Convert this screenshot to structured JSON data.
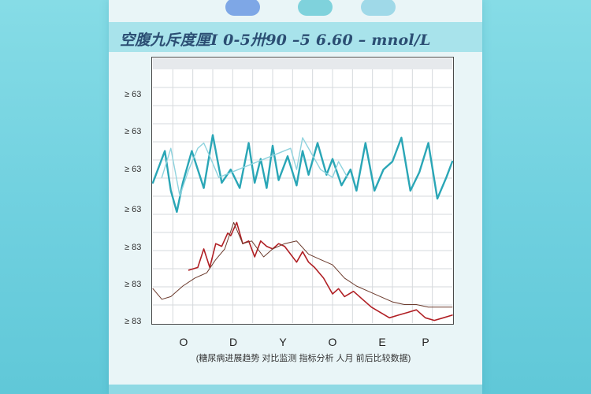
{
  "header": {
    "title": "空腹九斥度厘I 0-5卅90 –5 6.60 – mnol/L"
  },
  "colors": {
    "teal": "#2aa6b6",
    "teal_light": "#8fd3de",
    "red": "#b01f24",
    "red_dark": "#6b3a2c"
  },
  "chart_data": {
    "type": "line",
    "title": "空腹九斥度厘I 0-5卅90 –5 6.60 – mnol/L",
    "xlabel": "(糖尿病进展趋势 对比监测 指标分析 人月 前后比较数据)",
    "ylabel": "",
    "x_ticks": [
      "O",
      "D",
      "Y",
      "O",
      "E",
      "P"
    ],
    "y_ticks": [
      "≥ 63",
      "≥ 63",
      "≥ 63",
      "≥ 63",
      "≥ 83",
      "≥ 83",
      "≥ 83"
    ],
    "xlim": [
      0,
      100
    ],
    "ylim": [
      0,
      100
    ],
    "grid": true,
    "series": [
      {
        "color": "#2aa6b6",
        "x": [
          0,
          4,
          6,
          8,
          10,
          13,
          17,
          20,
          23,
          26,
          29,
          32,
          34,
          36,
          38,
          40,
          42,
          45,
          48,
          50,
          52,
          55,
          58,
          60,
          63,
          66,
          68,
          71,
          74,
          77,
          80,
          83,
          86,
          89,
          92,
          95,
          98,
          100
        ],
        "y": [
          53,
          65,
          50,
          42,
          53,
          65,
          51,
          71,
          53,
          58,
          51,
          68,
          53,
          62,
          51,
          67,
          54,
          63,
          52,
          65,
          56,
          68,
          56,
          62,
          52,
          58,
          50,
          68,
          50,
          58,
          61,
          70,
          50,
          57,
          68,
          47,
          55,
          61
        ]
      },
      {
        "color": "#8fd3de",
        "x": [
          3,
          6,
          9,
          12,
          15,
          17,
          19,
          22,
          46,
          48,
          50,
          53,
          56,
          60,
          62,
          65
        ],
        "y": [
          55,
          66,
          48,
          58,
          66,
          68,
          63,
          55,
          66,
          58,
          70,
          64,
          58,
          55,
          61,
          55
        ]
      },
      {
        "color": "#b01f24",
        "x": [
          12,
          15,
          17,
          19,
          21,
          23,
          25,
          26,
          28,
          30,
          32,
          34,
          36,
          38,
          40,
          42,
          44,
          46,
          48,
          50,
          52,
          54,
          57,
          60,
          62,
          64,
          67,
          70,
          73,
          76,
          79,
          82,
          85,
          88,
          91,
          94,
          97,
          100
        ],
        "y": [
          20,
          21,
          28,
          21,
          30,
          29,
          34,
          33,
          38,
          30,
          31,
          25,
          31,
          29,
          28,
          30,
          29,
          26,
          23,
          27,
          23,
          21,
          17,
          11,
          13,
          10,
          12,
          9,
          6,
          4,
          2,
          3,
          4,
          5,
          2,
          1,
          2,
          3
        ]
      },
      {
        "color": "#6b3a2c",
        "x": [
          0,
          3,
          6,
          10,
          14,
          18,
          21,
          24,
          27,
          30,
          33,
          37,
          40,
          44,
          48,
          52,
          56,
          60,
          64,
          68,
          72,
          76,
          80,
          84,
          88,
          92,
          96,
          100
        ],
        "y": [
          13,
          9,
          10,
          14,
          17,
          19,
          24,
          28,
          38,
          30,
          31,
          25,
          28,
          30,
          31,
          26,
          24,
          22,
          17,
          14,
          12,
          10,
          8,
          7,
          7,
          6,
          6,
          6
        ]
      }
    ]
  }
}
